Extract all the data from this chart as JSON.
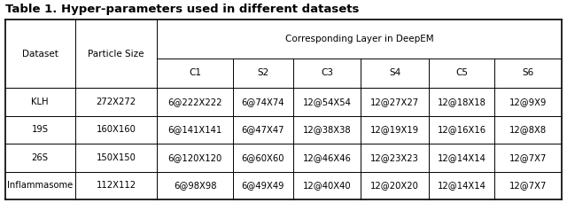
{
  "title": "Table 1. Hyper-parameters used in different datasets",
  "col_header_row1": [
    "Dataset",
    "Particle Size",
    "Corresponding Layer in DeepEM"
  ],
  "col_header_row2": [
    "",
    "",
    "C1",
    "S2",
    "C3",
    "S4",
    "C5",
    "S6"
  ],
  "rows": [
    [
      "KLH",
      "272X272",
      "6@222X222",
      "6@74X74",
      "12@54X54",
      "12@27X27",
      "12@18X18",
      "12@9X9"
    ],
    [
      "19S",
      "160X160",
      "6@141X141",
      "6@47X47",
      "12@38X38",
      "12@19X19",
      "12@16X16",
      "12@8X8"
    ],
    [
      "26S",
      "150X150",
      "6@120X120",
      "6@60X60",
      "12@46X46",
      "12@23X23",
      "12@14X14",
      "12@7X7"
    ],
    [
      "Inflammasome",
      "112X112",
      "6@98X98",
      "6@49X49",
      "12@40X40",
      "12@20X20",
      "12@14X14",
      "12@7X7"
    ]
  ],
  "background_color": "#ffffff",
  "line_color": "#000000",
  "title_fontsize": 9.5,
  "header_fontsize": 7.5,
  "cell_fontsize": 7.2,
  "fig_width": 6.4,
  "fig_height": 2.29,
  "dpi": 100
}
